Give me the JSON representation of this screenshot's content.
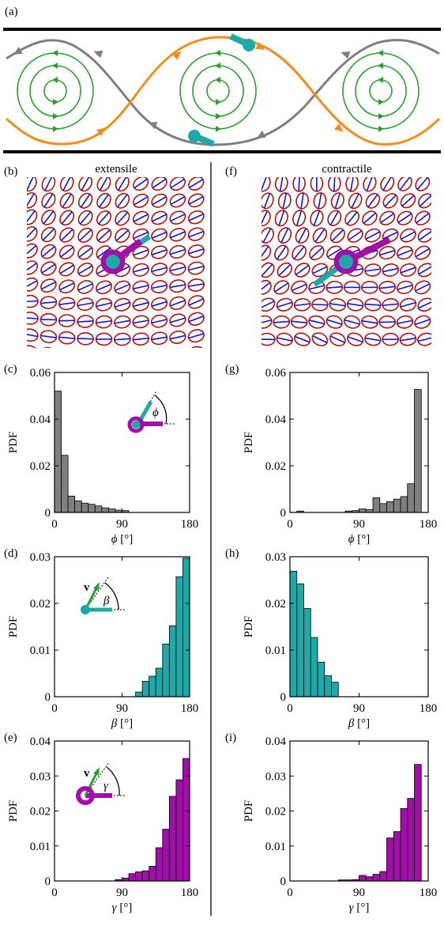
{
  "figure": {
    "panel_labels": [
      "(a)",
      "(b)",
      "(c)",
      "(d)",
      "(e)",
      "(f)",
      "(g)",
      "(h)",
      "(i)"
    ],
    "column_titles": {
      "left": "extensile",
      "right": "contractile"
    },
    "inset_symbols": {
      "phi": "ϕ",
      "beta": "β",
      "gamma": "γ",
      "v": "v"
    },
    "colors": {
      "gray": "#7f7f7f",
      "orange": "#f28c1c",
      "green": "#2ca02c",
      "teal": "#1fa8a8",
      "magenta": "#a010a8",
      "red": "#b01010",
      "blue": "#1010e0",
      "hist_gray": "#7f7f7f",
      "hist_teal": "#1fa8a8",
      "hist_magenta": "#a010a8"
    }
  },
  "chart_data": [
    {
      "id": "c",
      "type": "bar",
      "ylabel": "PDF",
      "xlabel_symbol": "ϕ",
      "xlabel_unit": "[°]",
      "xlim": [
        0,
        180
      ],
      "ylim": [
        0,
        0.06
      ],
      "xticks": [
        0,
        90,
        180
      ],
      "yticks": [
        0,
        0.02,
        0.04,
        0.06
      ],
      "ytick_labels": [
        "0",
        "0.02",
        "0.04",
        "0.06"
      ],
      "color": "#7f7f7f",
      "bin_width": 9,
      "values": [
        0.052,
        0.0245,
        0.007,
        0.005,
        0.004,
        0.0035,
        0.0028,
        0.002,
        0.0015,
        0.001,
        0.0008,
        0,
        0,
        0,
        0,
        0,
        0,
        0,
        0,
        0
      ]
    },
    {
      "id": "d",
      "type": "bar",
      "ylabel": "PDF",
      "xlabel_symbol": "β",
      "xlabel_unit": "[°]",
      "xlim": [
        0,
        180
      ],
      "ylim": [
        0,
        0.03
      ],
      "xticks": [
        0,
        90,
        180
      ],
      "yticks": [
        0,
        0.01,
        0.02,
        0.03
      ],
      "ytick_labels": [
        "0",
        "0.01",
        "0.02",
        "0.03"
      ],
      "color": "#1fa8a8",
      "bin_width": 9,
      "values": [
        0,
        0,
        0,
        0,
        0,
        0,
        0,
        0,
        0,
        0,
        0,
        0,
        0.001,
        0.0033,
        0.0044,
        0.0061,
        0.0113,
        0.0152,
        0.0257,
        0.0297
      ]
    },
    {
      "id": "e",
      "type": "bar",
      "ylabel": "PDF",
      "xlabel_symbol": "γ",
      "xlabel_unit": "[°]",
      "xlim": [
        0,
        180
      ],
      "ylim": [
        0,
        0.04
      ],
      "xticks": [
        0,
        90,
        180
      ],
      "yticks": [
        0,
        0.01,
        0.02,
        0.03,
        0.04
      ],
      "ytick_labels": [
        "0",
        "0.01",
        "0.02",
        "0.03",
        "0.04"
      ],
      "color": "#a010a8",
      "bin_width": 9,
      "values": [
        0,
        0,
        0,
        0,
        0,
        0,
        0,
        0,
        0,
        0.0004,
        0.0008,
        0.0021,
        0.0026,
        0.0029,
        0.0042,
        0.0095,
        0.0148,
        0.0242,
        0.0289,
        0.035
      ]
    },
    {
      "id": "g",
      "type": "bar",
      "ylabel": "PDF",
      "xlabel_symbol": "ϕ",
      "xlabel_unit": "[°]",
      "xlim": [
        0,
        180
      ],
      "ylim": [
        0,
        0.06
      ],
      "xticks": [
        0,
        90,
        180
      ],
      "yticks": [
        0,
        0.02,
        0.04,
        0.06
      ],
      "ytick_labels": [
        "0",
        "0.02",
        "0.04",
        "0.06"
      ],
      "color": "#7f7f7f",
      "bin_width": 9,
      "values": [
        0,
        0.0006,
        0,
        0,
        0,
        0,
        0,
        0,
        0.0006,
        0.0008,
        0.0015,
        0.0012,
        0.0063,
        0.0038,
        0.0046,
        0.0057,
        0.0068,
        0.0123,
        0.0527,
        0
      ]
    },
    {
      "id": "h",
      "type": "bar",
      "ylabel": "PDF",
      "xlabel_symbol": "β",
      "xlabel_unit": "[°]",
      "xlim": [
        0,
        180
      ],
      "ylim": [
        0,
        0.03
      ],
      "xticks": [
        0,
        90,
        180
      ],
      "yticks": [
        0,
        0.01,
        0.02,
        0.03
      ],
      "ytick_labels": [
        "0",
        "0.01",
        "0.02",
        "0.03"
      ],
      "color": "#1fa8a8",
      "bin_width": 9,
      "values": [
        0.0269,
        0.0242,
        0.0189,
        0.0127,
        0.0074,
        0.0045,
        0.0031,
        0,
        0,
        0,
        0,
        0,
        0,
        0,
        0,
        0,
        0,
        0,
        0,
        0
      ]
    },
    {
      "id": "i",
      "type": "bar",
      "ylabel": "PDF",
      "xlabel_symbol": "γ",
      "xlabel_unit": "[°]",
      "xlim": [
        0,
        180
      ],
      "ylim": [
        0,
        0.04
      ],
      "xticks": [
        0,
        90,
        180
      ],
      "yticks": [
        0,
        0.01,
        0.02,
        0.03,
        0.04
      ],
      "ytick_labels": [
        "0",
        "0.01",
        "0.02",
        "0.03",
        "0.04"
      ],
      "color": "#a010a8",
      "bin_width": 9,
      "values": [
        0,
        0,
        0,
        0,
        0,
        0,
        0,
        0.0003,
        0.0003,
        0.0004,
        0.0016,
        0.0012,
        0.0019,
        0.0027,
        0.0123,
        0.0141,
        0.0207,
        0.0236,
        0.0333,
        0
      ]
    }
  ]
}
